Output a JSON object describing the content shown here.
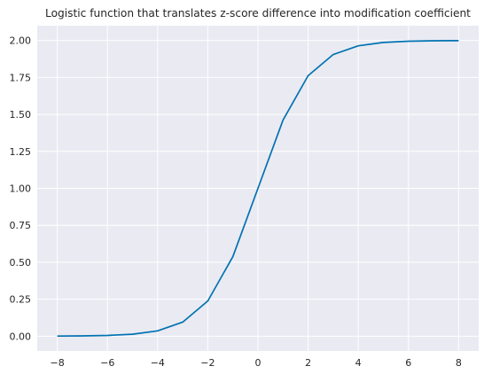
{
  "chart_data": {
    "type": "line",
    "title": "Logistic function that translates z-score difference into modification coefficient",
    "xlabel": "",
    "ylabel": "",
    "xlim": [
      -8.8,
      8.8
    ],
    "ylim": [
      -0.1,
      2.1
    ],
    "xticks": [
      -8,
      -6,
      -4,
      -2,
      0,
      2,
      4,
      6,
      8
    ],
    "yticks": [
      0,
      0.25,
      0.5,
      0.75,
      1.0,
      1.25,
      1.5,
      1.75,
      2.0
    ],
    "xtick_labels": [
      "−8",
      "−6",
      "−4",
      "−2",
      "0",
      "2",
      "4",
      "6",
      "8"
    ],
    "ytick_labels": [
      "0.00",
      "0.25",
      "0.50",
      "0.75",
      "1.00",
      "1.25",
      "1.50",
      "1.75",
      "2.00"
    ],
    "grid": true,
    "series": [
      {
        "color": "#0072b2",
        "x": [
          -8,
          -7,
          -6,
          -5,
          -4,
          -3,
          -2,
          -1,
          0,
          1,
          2,
          3,
          4,
          5,
          6,
          7,
          8
        ],
        "y": [
          0.0007,
          0.0018,
          0.005,
          0.013,
          0.036,
          0.095,
          0.238,
          0.538,
          1.0,
          1.462,
          1.762,
          1.905,
          1.964,
          1.987,
          1.995,
          1.998,
          1.999
        ]
      }
    ]
  }
}
